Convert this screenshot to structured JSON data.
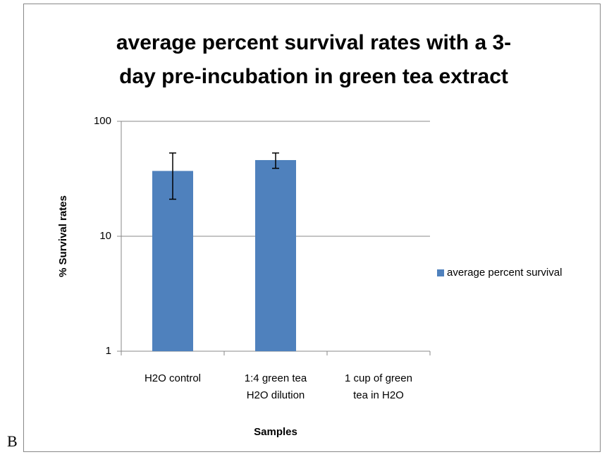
{
  "chart_data": {
    "type": "bar",
    "panel_label": "B",
    "title": [
      "average percent survival rates with a 3-",
      "day pre-incubation in green tea extract"
    ],
    "x_label": "Samples",
    "y_label": "% Survival rates",
    "categories": [
      [
        "H2O control"
      ],
      [
        "1:4 green tea",
        "H2O dilution"
      ],
      [
        "1 cup of green",
        "tea in H2O"
      ]
    ],
    "series": [
      {
        "name": "average percent survival",
        "color": "#4f81bd",
        "values": [
          37,
          46,
          null
        ],
        "errors": [
          16,
          7,
          null
        ]
      }
    ],
    "ylim": [
      1,
      100
    ],
    "yticks": [
      1,
      10,
      100
    ],
    "log_y": true,
    "grid": true,
    "legend": "right"
  }
}
